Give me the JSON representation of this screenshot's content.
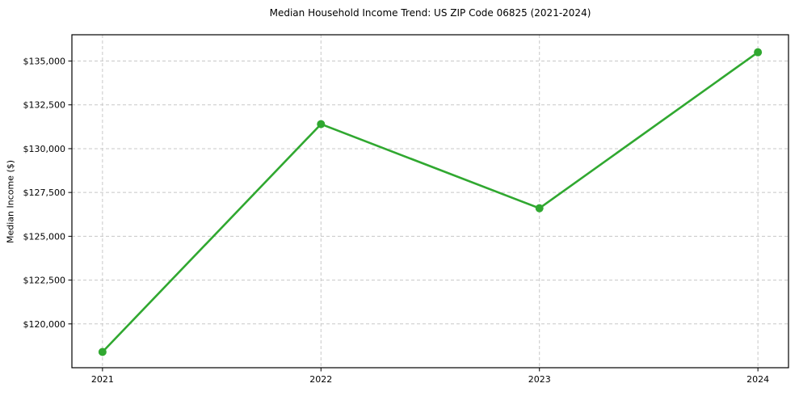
{
  "chart_data": {
    "type": "line",
    "title": "Median Household Income Trend: US ZIP Code 06825 (2021-2024)",
    "xlabel": "",
    "ylabel": "Median Income ($)",
    "x": [
      2021,
      2022,
      2023,
      2024
    ],
    "series": [
      {
        "name": "Median Household Income",
        "values": [
          118400,
          131400,
          126600,
          135500
        ],
        "color": "#30a830",
        "marker": "circle",
        "marker_radius": 5,
        "line_width": 2.6
      }
    ],
    "xticks": {
      "values": [
        2021,
        2022,
        2023,
        2024
      ],
      "labels": [
        "2021",
        "2022",
        "2023",
        "2024"
      ]
    },
    "yticks": {
      "values": [
        120000,
        122500,
        125000,
        127500,
        130000,
        132500,
        135000
      ],
      "labels": [
        "$120,000",
        "$122,500",
        "$125,000",
        "$127,500",
        "$130,000",
        "$132,500",
        "$135,000"
      ]
    },
    "xlim": [
      2020.86,
      2024.14
    ],
    "ylim": [
      117500,
      136500
    ],
    "grid": true,
    "grid_style": "dashed",
    "legend": "none",
    "colors": {
      "line": "#30a830",
      "grid": "#c8c8c8",
      "spine": "#000000",
      "text": "#000000",
      "background": "#ffffff"
    }
  }
}
